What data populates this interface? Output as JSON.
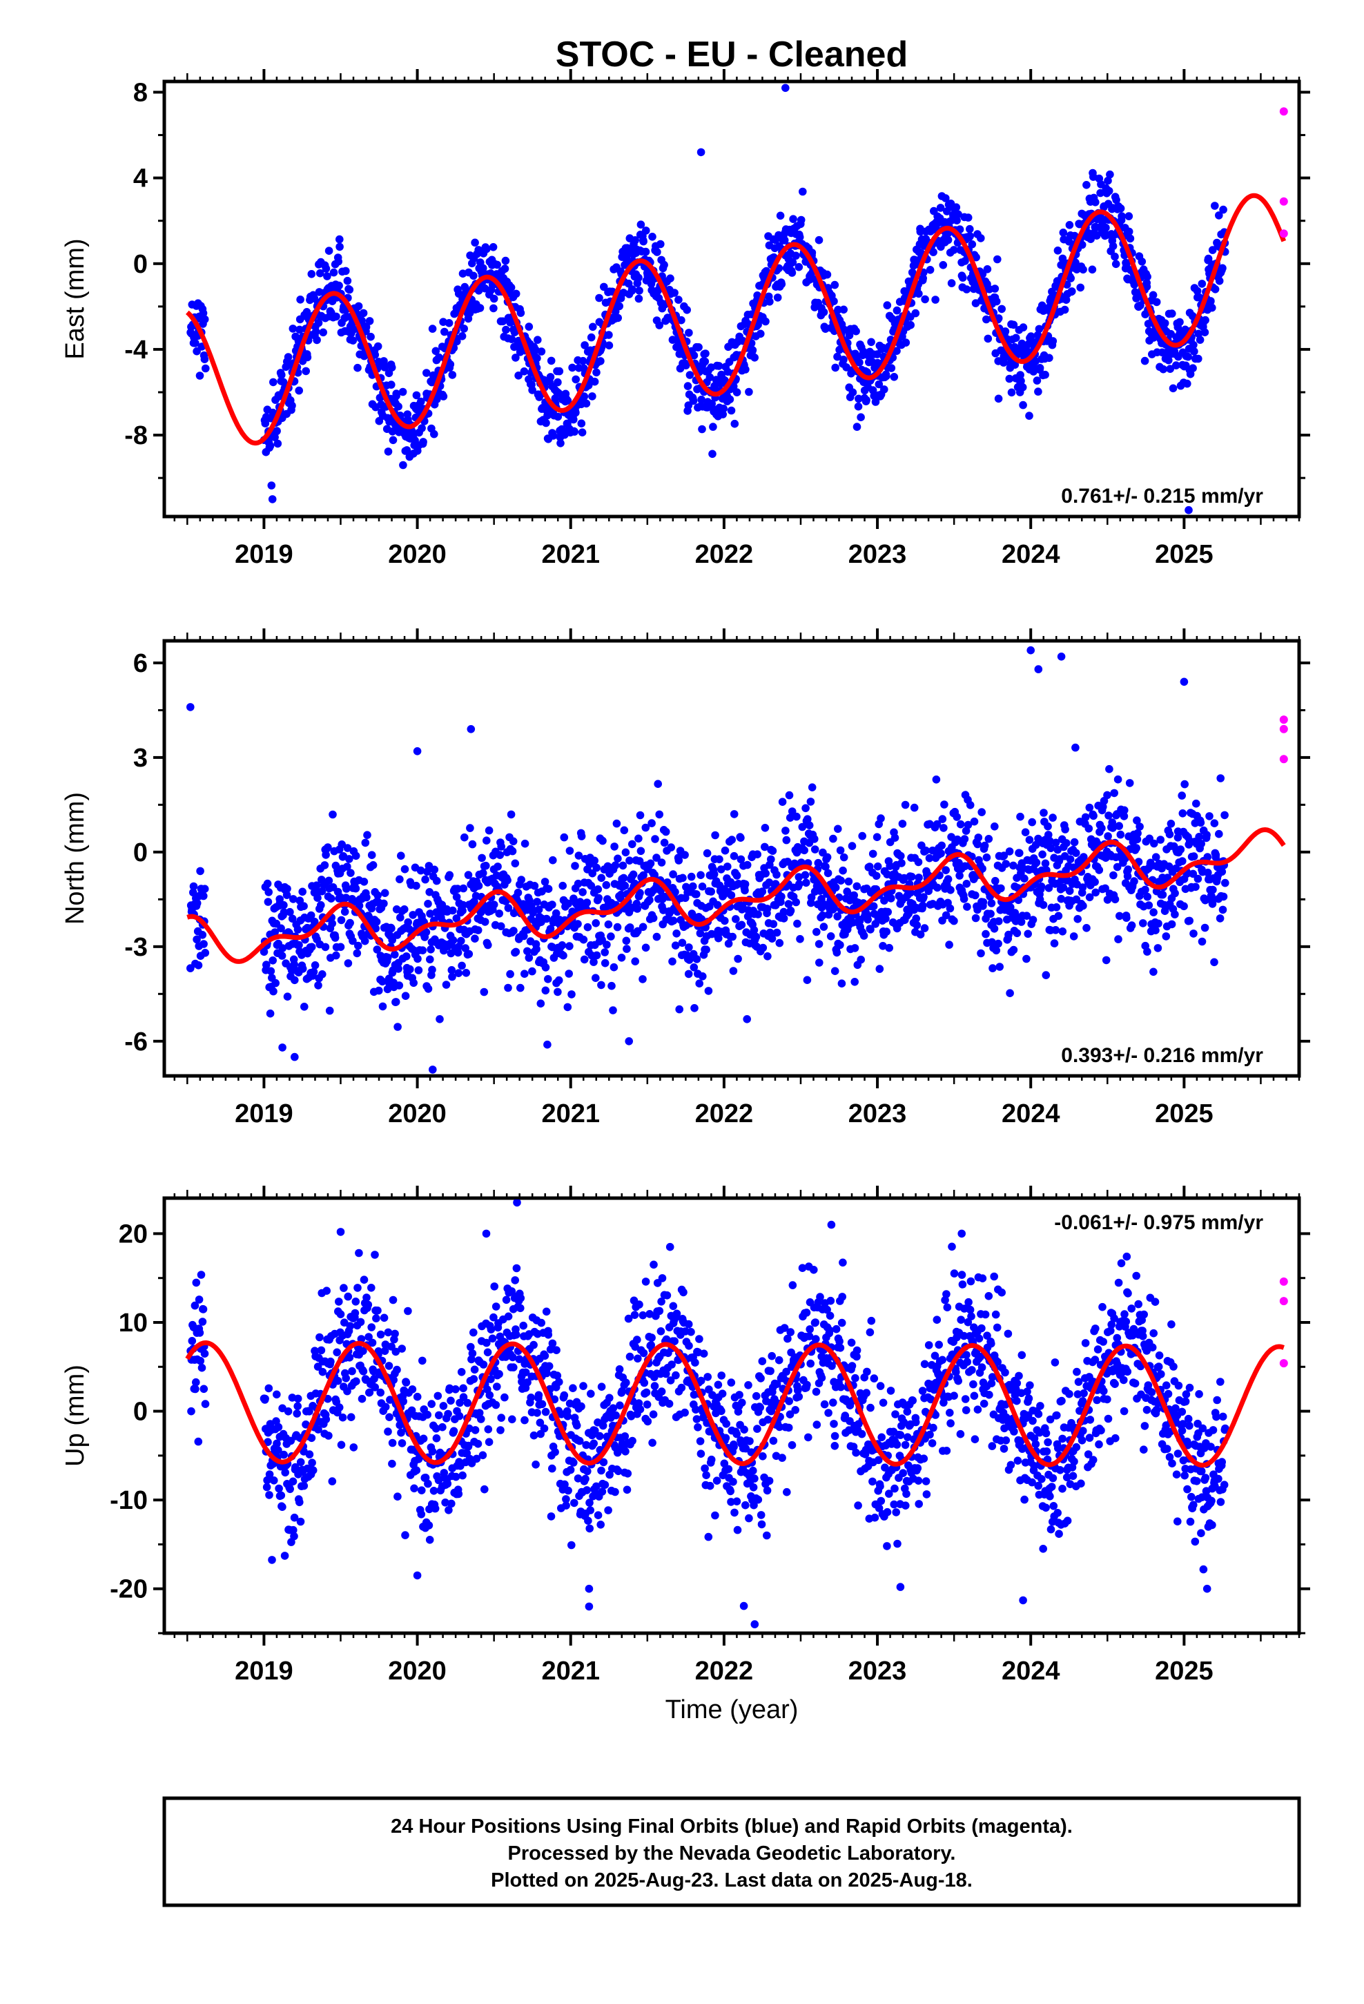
{
  "title": "STOC  - EU - Cleaned",
  "xlabel": "Time (year)",
  "footer": {
    "lines": [
      "24 Hour Positions Using Final Orbits (blue) and Rapid Orbits (magenta).",
      "Processed by the Nevada Geodetic Laboratory.",
      "Plotted on 2025-Aug-23. Last data on 2025-Aug-18."
    ]
  },
  "colors": {
    "final_orbits": "#0000ff",
    "rapid_orbits": "#ff00ff",
    "model": "#ff0000",
    "frame": "#000000"
  },
  "chart_data": [
    {
      "type": "scatter",
      "ylabel": "East (mm)",
      "xlim": [
        2018.35,
        2025.75
      ],
      "ylim": [
        -11.8,
        8.5
      ],
      "yticks": [
        -8,
        -4,
        0,
        4,
        8
      ],
      "xticks": [
        2019,
        2020,
        2021,
        2022,
        2023,
        2024,
        2025
      ],
      "rate_label": "0.761+/- 0.215 mm/yr",
      "rate_label_position": "bottom-right",
      "model": {
        "offset": -2.75,
        "rate": 0.761,
        "annual_amplitude": 3.3,
        "annual_phase_year": 0.45,
        "semiannual_amplitude": 0.0,
        "semiannual_phase_year": 0.0,
        "t0": 2018.5,
        "t1": 2025.65
      },
      "noise": 0.9,
      "seed": 11,
      "final_orbits": {
        "segments": [
          [
            2018.52,
            2018.62
          ],
          [
            2019.0,
            2025.27
          ]
        ],
        "points_per_year": 300,
        "outliers": [
          [
            2019.04,
            -8.5
          ],
          [
            2019.03,
            -7.9
          ],
          [
            2022.4,
            8.2
          ],
          [
            2023.79,
            -6.3
          ],
          [
            2021.85,
            5.2
          ],
          [
            2023.93,
            -6.0
          ],
          [
            2023.99,
            -7.1
          ],
          [
            2023.95,
            -6.6
          ],
          [
            2024.12,
            -4.4
          ],
          [
            2021.8,
            -6.4
          ],
          [
            2021.99,
            -6.3
          ],
          [
            2025.03,
            -11.5
          ],
          [
            2025.02,
            -5.6
          ],
          [
            2025.2,
            2.7
          ]
        ]
      },
      "rapid_orbits": [
        [
          2025.65,
          7.1
        ],
        [
          2025.65,
          2.9
        ],
        [
          2025.65,
          1.4
        ]
      ]
    },
    {
      "type": "scatter",
      "ylabel": "North (mm)",
      "xlim": [
        2018.35,
        2025.75
      ],
      "ylim": [
        -7.1,
        6.7
      ],
      "yticks": [
        -6,
        -3,
        0,
        3,
        6
      ],
      "xticks": [
        2019,
        2020,
        2021,
        2022,
        2023,
        2024,
        2025
      ],
      "rate_label": "0.393+/- 0.216 mm/yr",
      "rate_label_position": "bottom-right",
      "model": {
        "offset": -1.5,
        "rate": 0.393,
        "annual_amplitude": 0.55,
        "annual_phase_year": 0.45,
        "semiannual_amplitude": 0.35,
        "semiannual_phase_year": 0.05,
        "t0": 2018.5,
        "t1": 2025.65
      },
      "noise": 1.05,
      "seed": 23,
      "final_orbits": {
        "segments": [
          [
            2018.52,
            2018.62
          ],
          [
            2019.0,
            2025.27
          ]
        ],
        "points_per_year": 300,
        "outliers": [
          [
            2018.52,
            4.6
          ],
          [
            2024.0,
            6.4
          ],
          [
            2024.2,
            6.2
          ],
          [
            2024.05,
            5.8
          ],
          [
            2025.0,
            5.4
          ],
          [
            2020.1,
            -6.9
          ],
          [
            2019.2,
            -6.5
          ],
          [
            2019.12,
            -6.2
          ],
          [
            2021.38,
            -6.0
          ],
          [
            2022.15,
            -5.3
          ],
          [
            2020.35,
            3.9
          ],
          [
            2020.0,
            3.2
          ],
          [
            2024.8,
            -3.8
          ]
        ]
      },
      "rapid_orbits": [
        [
          2025.65,
          4.2
        ],
        [
          2025.65,
          3.9
        ],
        [
          2025.65,
          2.95
        ]
      ]
    },
    {
      "type": "scatter",
      "ylabel": "Up (mm)",
      "xlim": [
        2018.35,
        2025.75
      ],
      "ylim": [
        -25.0,
        24.0
      ],
      "yticks": [
        -20,
        -10,
        0,
        10,
        20
      ],
      "xticks": [
        2019,
        2020,
        2021,
        2022,
        2023,
        2024,
        2025
      ],
      "rate_label": "-0.061+/- 0.975 mm/yr",
      "rate_label_position": "top-right",
      "model": {
        "offset": 0.8,
        "rate": -0.061,
        "annual_amplitude": 6.7,
        "annual_phase_year": 0.62,
        "semiannual_amplitude": 0.0,
        "semiannual_phase_year": 0.0,
        "t0": 2018.5,
        "t1": 2025.65
      },
      "noise": 4.3,
      "seed": 37,
      "final_orbits": {
        "segments": [
          [
            2018.52,
            2018.62
          ],
          [
            2019.0,
            2025.27
          ]
        ],
        "points_per_year": 300,
        "outliers": [
          [
            2020.65,
            23.5
          ],
          [
            2019.5,
            20.2
          ],
          [
            2022.7,
            21.0
          ],
          [
            2023.55,
            20.0
          ],
          [
            2020.45,
            20.0
          ],
          [
            2022.2,
            -24.0
          ],
          [
            2021.12,
            -22.0
          ],
          [
            2021.12,
            -20.0
          ],
          [
            2023.15,
            -19.8
          ],
          [
            2023.95,
            -21.3
          ],
          [
            2020.0,
            -18.5
          ],
          [
            2025.15,
            -20.0
          ],
          [
            2018.55,
            11.9
          ]
        ]
      },
      "rapid_orbits": [
        [
          2025.65,
          14.6
        ],
        [
          2025.65,
          12.4
        ],
        [
          2025.65,
          5.4
        ]
      ]
    }
  ]
}
